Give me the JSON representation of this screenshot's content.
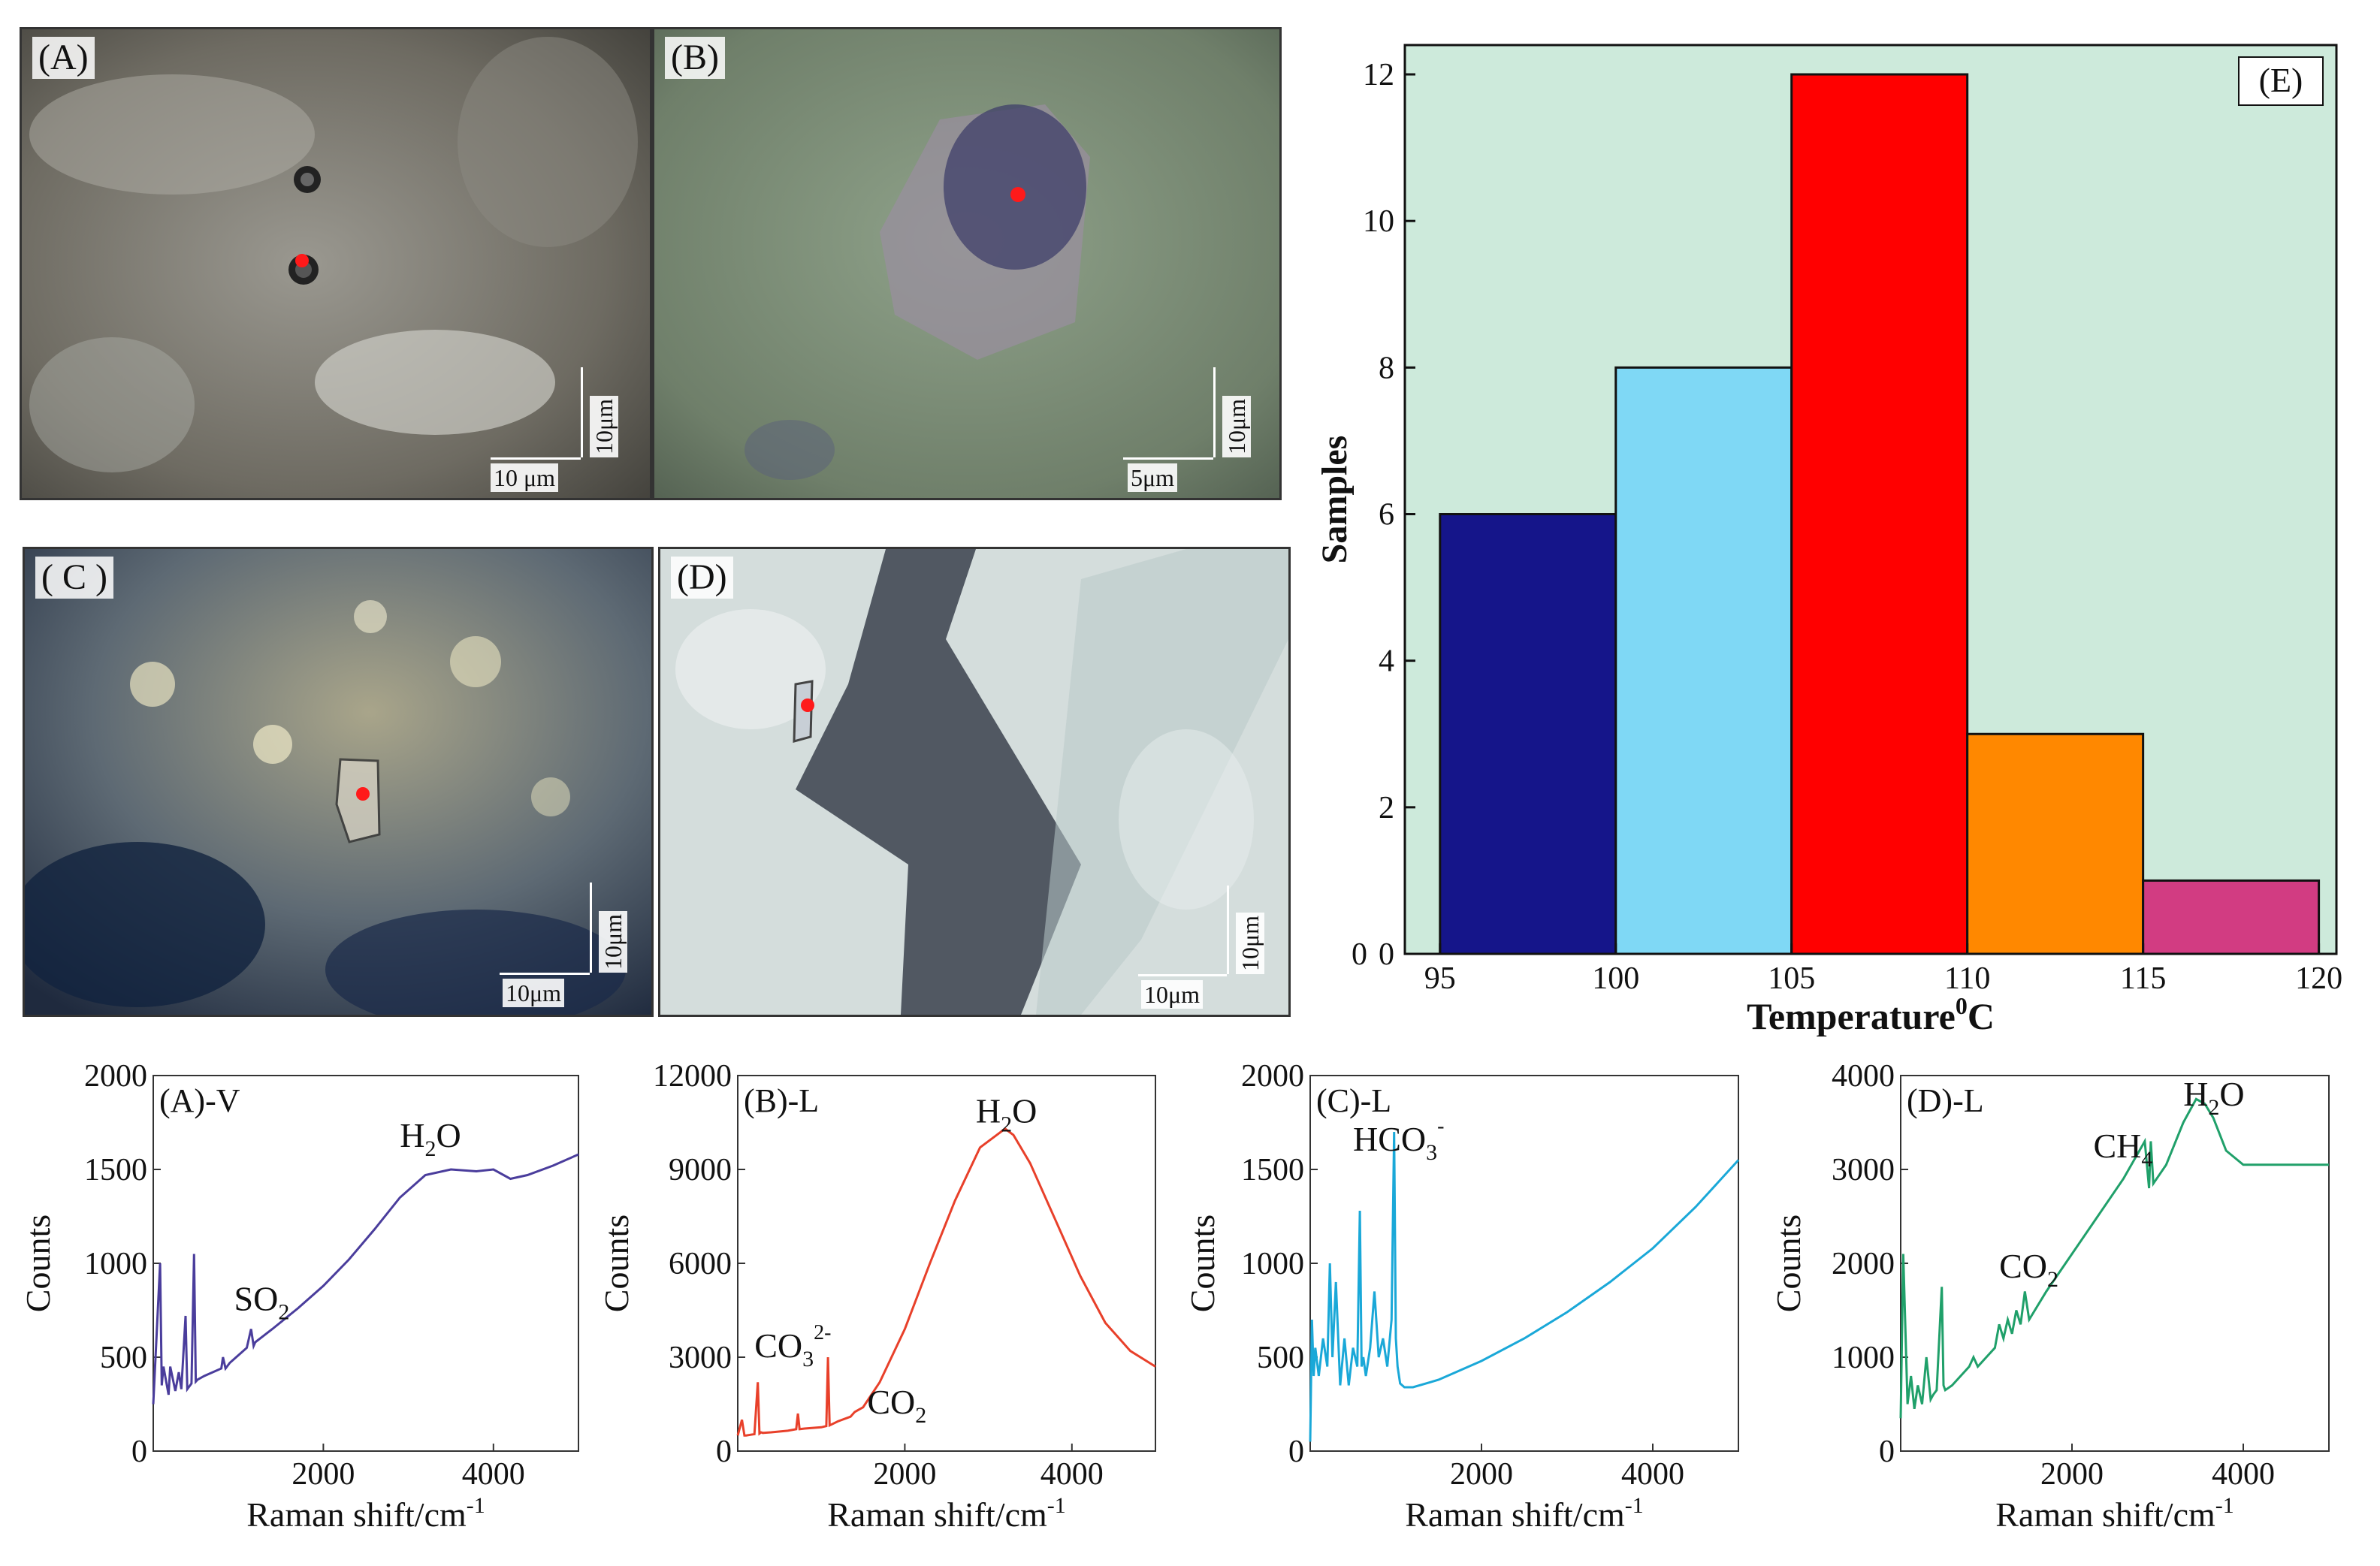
{
  "panels": {
    "A": {
      "label": "(A)",
      "scale_h": "10 μm",
      "scale_v": "10μm"
    },
    "B": {
      "label": "(B)",
      "scale_h": "5μm",
      "scale_v": "10μm"
    },
    "C": {
      "label": "( C )",
      "scale_h": "10μm",
      "scale_v": "10μm"
    },
    "D": {
      "label": "(D)",
      "scale_h": "10μm",
      "scale_v": "10μm"
    }
  },
  "colors": {
    "hist_bg": "#cdeadb",
    "bar1": "#15158a",
    "bar2": "#7fd8f5",
    "bar3": "#ff0000",
    "bar4": "#ff8800",
    "bar5": "#d23c82",
    "specA": "#4a3d9c",
    "specB": "#e8402a",
    "specC": "#1aa8d8",
    "specD": "#20a06a"
  },
  "chart_data": [
    {
      "type": "bar",
      "panel_label": "(E)",
      "xlabel_main": "Temperature",
      "xlabel_sup": "0",
      "xlabel_end": "C",
      "ylabel": "Samples",
      "bin_edges": [
        95,
        100,
        105,
        110,
        115,
        120
      ],
      "values": [
        6,
        8,
        12,
        3,
        1
      ],
      "xticks": [
        "95",
        "100",
        "105",
        "110",
        "115",
        "120"
      ],
      "yticks": [
        "0",
        "2",
        "4",
        "6",
        "8",
        "10",
        "12"
      ],
      "y_zero_label": "0",
      "ylim": [
        0,
        12.4
      ],
      "xlim": [
        94,
        120.5
      ]
    },
    {
      "type": "line",
      "title": "(A)-V",
      "xlabel": "Raman shift/cm",
      "xlabel_sup": "-1",
      "ylabel": "Counts",
      "xlim": [
        0,
        5000
      ],
      "ylim": [
        0,
        2000
      ],
      "xticks": [
        "2000",
        "4000"
      ],
      "yticks": [
        "0",
        "500",
        "1000",
        "1500",
        "2000"
      ],
      "annotations": [
        {
          "base": "SO",
          "sub": "2",
          "sup": "",
          "x": 950,
          "y": 750
        },
        {
          "base": "H",
          "sub": "2",
          "sup": "",
          "post": "O",
          "x": 2900,
          "y": 1620
        }
      ],
      "x": [
        0,
        80,
        100,
        120,
        180,
        200,
        260,
        300,
        330,
        380,
        400,
        450,
        480,
        500,
        520,
        600,
        700,
        800,
        820,
        850,
        900,
        1000,
        1100,
        1150,
        1180,
        1200,
        1400,
        1700,
        2000,
        2300,
        2600,
        2900,
        3200,
        3500,
        3800,
        4000,
        4200,
        4400,
        4700,
        5000
      ],
      "y": [
        250,
        1000,
        350,
        450,
        300,
        450,
        320,
        420,
        330,
        720,
        330,
        360,
        1050,
        370,
        380,
        400,
        420,
        440,
        500,
        440,
        470,
        510,
        550,
        650,
        560,
        580,
        650,
        760,
        880,
        1020,
        1180,
        1350,
        1470,
        1500,
        1490,
        1500,
        1450,
        1470,
        1520,
        1580
      ]
    },
    {
      "type": "line",
      "title": "(B)-L",
      "xlabel": "Raman shift/cm",
      "xlabel_sup": "-1",
      "ylabel": "Counts",
      "xlim": [
        0,
        5000
      ],
      "ylim": [
        0,
        12000
      ],
      "xticks": [
        "2000",
        "4000"
      ],
      "yticks": [
        "0",
        "3000",
        "6000",
        "9000",
        "12000"
      ],
      "annotations": [
        {
          "base": "CO",
          "sub": "3",
          "sup": "2-",
          "x": 200,
          "y": 3000
        },
        {
          "base": "CO",
          "sub": "2",
          "sup": "",
          "x": 1550,
          "y": 1200
        },
        {
          "base": "H",
          "sub": "2",
          "sup": "",
          "post": "O",
          "x": 2850,
          "y": 10500
        }
      ],
      "x": [
        0,
        50,
        80,
        100,
        150,
        200,
        240,
        260,
        280,
        300,
        400,
        600,
        700,
        720,
        740,
        800,
        1000,
        1060,
        1080,
        1100,
        1200,
        1350,
        1400,
        1500,
        1700,
        2000,
        2300,
        2600,
        2900,
        3100,
        3200,
        3300,
        3500,
        3800,
        4100,
        4400,
        4700,
        5000
      ],
      "y": [
        500,
        1000,
        500,
        500,
        520,
        540,
        2200,
        560,
        600,
        580,
        600,
        650,
        700,
        1200,
        700,
        720,
        760,
        800,
        3000,
        820,
        950,
        1100,
        1250,
        1400,
        2200,
        3900,
        6000,
        8000,
        9700,
        10100,
        10300,
        10100,
        9200,
        7400,
        5600,
        4100,
        3200,
        2700
      ]
    },
    {
      "type": "line",
      "title": "(C)-L",
      "xlabel": "Raman shift/cm",
      "xlabel_sup": "-1",
      "ylabel": "Counts",
      "xlim": [
        0,
        5000
      ],
      "ylim": [
        0,
        2000
      ],
      "xticks": [
        "2000",
        "4000"
      ],
      "yticks": [
        "0",
        "500",
        "1000",
        "1500",
        "2000"
      ],
      "annotations": [
        {
          "base": "HCO",
          "sub": "3",
          "sup": "-",
          "x": 500,
          "y": 1600
        }
      ],
      "x": [
        0,
        20,
        40,
        60,
        100,
        150,
        200,
        230,
        260,
        300,
        350,
        400,
        450,
        500,
        550,
        580,
        600,
        620,
        650,
        700,
        750,
        800,
        850,
        900,
        950,
        980,
        1000,
        1020,
        1050,
        1100,
        1200,
        1500,
        2000,
        2500,
        3000,
        3500,
        4000,
        4500,
        5000
      ],
      "y": [
        50,
        700,
        400,
        550,
        400,
        600,
        450,
        1000,
        500,
        900,
        350,
        600,
        350,
        550,
        450,
        1280,
        450,
        500,
        400,
        550,
        850,
        500,
        600,
        450,
        700,
        1700,
        600,
        450,
        360,
        340,
        340,
        380,
        480,
        600,
        740,
        900,
        1080,
        1300,
        1550
      ]
    },
    {
      "type": "line",
      "title": "(D)-L",
      "xlabel": "Raman shift/cm",
      "xlabel_sup": "-1",
      "ylabel": "Counts",
      "xlim": [
        0,
        5000
      ],
      "ylim": [
        0,
        4000
      ],
      "xticks": [
        "2000",
        "4000"
      ],
      "yticks": [
        "0",
        "1000",
        "2000",
        "3000",
        "4000"
      ],
      "annotations": [
        {
          "base": "CO",
          "sub": "2",
          "sup": "",
          "x": 1150,
          "y": 1850
        },
        {
          "base": "CH",
          "sub": "4",
          "sup": "",
          "x": 2250,
          "y": 3130
        },
        {
          "base": "H",
          "sub": "2",
          "sup": "",
          "post": "O",
          "x": 3300,
          "y": 3680
        }
      ],
      "x": [
        0,
        30,
        80,
        120,
        160,
        200,
        250,
        300,
        350,
        380,
        420,
        480,
        500,
        520,
        600,
        700,
        800,
        850,
        900,
        1000,
        1100,
        1150,
        1200,
        1250,
        1300,
        1350,
        1400,
        1450,
        1500,
        1700,
        2000,
        2300,
        2600,
        2850,
        2900,
        2920,
        2950,
        3100,
        3300,
        3450,
        3550,
        3650,
        3800,
        4000,
        4300,
        4600,
        5000
      ],
      "y": [
        350,
        2100,
        500,
        800,
        450,
        700,
        500,
        1000,
        550,
        600,
        650,
        1750,
        700,
        650,
        700,
        800,
        900,
        1000,
        900,
        1000,
        1100,
        1350,
        1200,
        1400,
        1250,
        1500,
        1350,
        1700,
        1400,
        1700,
        2100,
        2500,
        2900,
        3300,
        2800,
        3300,
        2850,
        3050,
        3500,
        3750,
        3700,
        3550,
        3200,
        3050,
        3050,
        3050,
        3050
      ]
    }
  ]
}
